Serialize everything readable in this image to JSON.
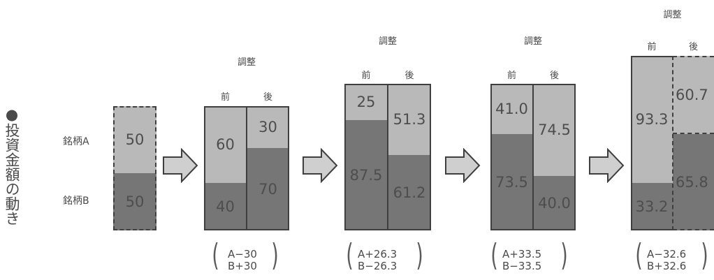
{
  "vertical_title": "●投資金額の動き",
  "row_labels": {
    "a": "銘柄A",
    "b": "銘柄B"
  },
  "header": {
    "adjust": "調整",
    "before": "前",
    "after": "後"
  },
  "initial": {
    "a": "50",
    "b": "50"
  },
  "steps": [
    {
      "before": {
        "a": "60",
        "b": "40"
      },
      "after": {
        "a": "30",
        "b": "70"
      },
      "adj_a": "A−30",
      "adj_b": "B+30"
    },
    {
      "before": {
        "a": "25",
        "b": "87.5"
      },
      "after": {
        "a": "51.3",
        "b": "61.2"
      },
      "adj_a": "A+26.3",
      "adj_b": "B−26.3"
    },
    {
      "before": {
        "a": "41.0",
        "b": "73.5"
      },
      "after": {
        "a": "74.5",
        "b": "40.0"
      },
      "adj_a": "A+33.5",
      "adj_b": "B−33.5"
    },
    {
      "before": {
        "a": "93.3",
        "b": "33.2"
      },
      "after": {
        "a": "60.7",
        "b": "65.8"
      },
      "adj_a": "A−32.6",
      "adj_b": "B+32.6"
    }
  ],
  "colors": {
    "fund_a": "#b9b9b9",
    "fund_b": "#767676",
    "outline": "#3f3f3f",
    "arrow_fill": "#cfcfcf"
  }
}
